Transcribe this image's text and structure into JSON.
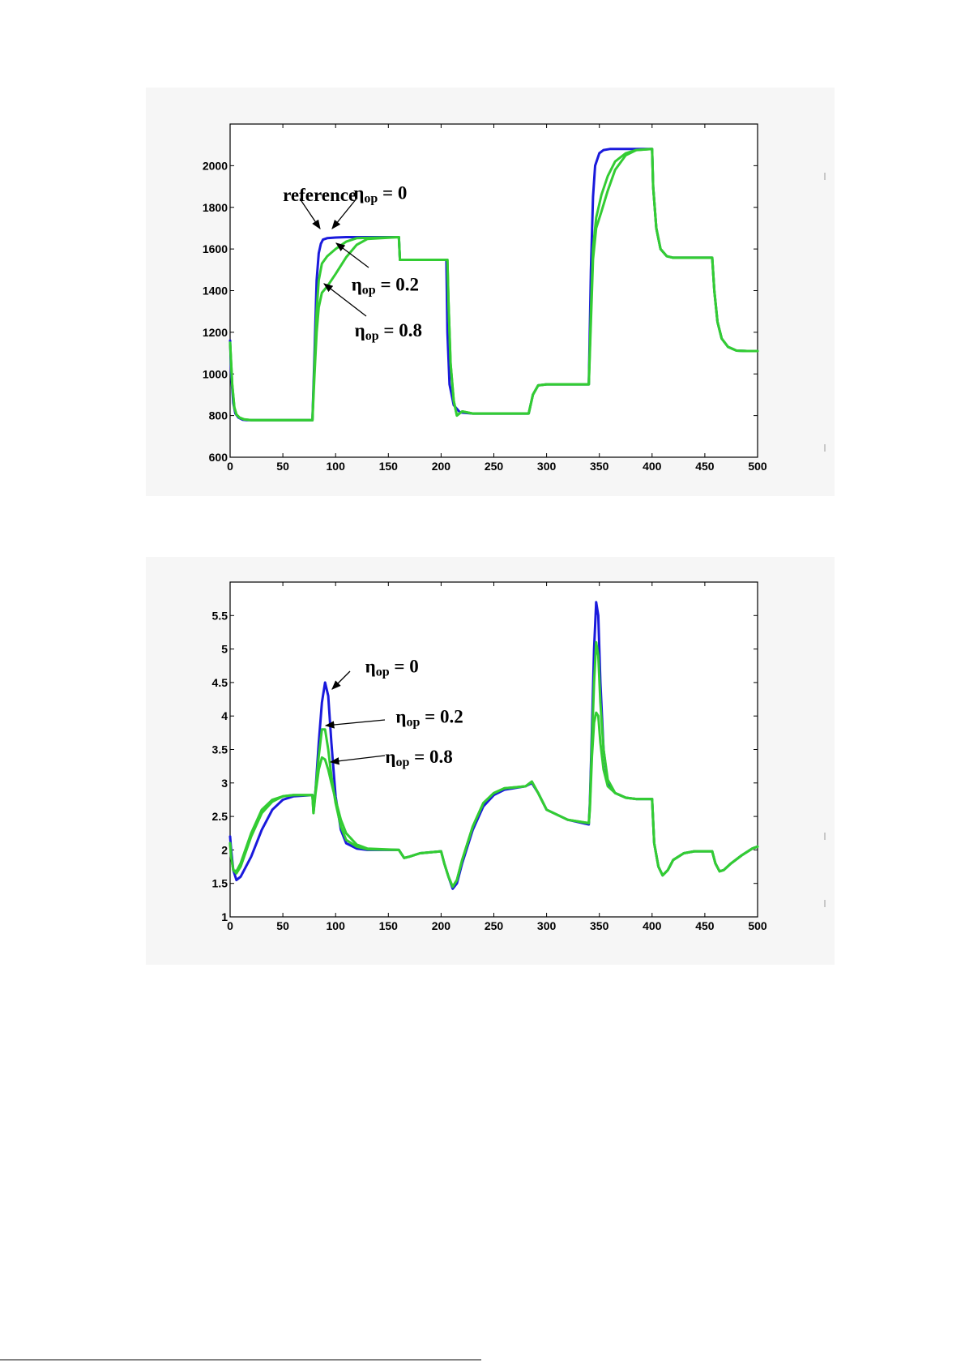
{
  "chart_data": [
    {
      "type": "line",
      "title": "",
      "xlabel": "",
      "ylabel": "",
      "xlim": [
        0,
        500
      ],
      "ylim": [
        600,
        2200
      ],
      "xticks": [
        0,
        50,
        100,
        150,
        200,
        250,
        300,
        350,
        400,
        450,
        500
      ],
      "yticks": [
        600,
        800,
        1000,
        1200,
        1400,
        1600,
        1800,
        2000
      ],
      "grid": false,
      "series": [
        {
          "color": "#1a1adc",
          "x": [
            0,
            1,
            3,
            5,
            8,
            12,
            16,
            20,
            78,
            80,
            82,
            84,
            86,
            88,
            92,
            100,
            110,
            160,
            161,
            200,
            205,
            206,
            208,
            212,
            218,
            230,
            283,
            287,
            292,
            300,
            340,
            342,
            344,
            346,
            350,
            354,
            360,
            400,
            401,
            404,
            408,
            414,
            420,
            457,
            459,
            462,
            466,
            472,
            480,
            490,
            500
          ],
          "y": [
            1160,
            1000,
            860,
            810,
            790,
            780,
            778,
            778,
            778,
            1100,
            1450,
            1580,
            1625,
            1645,
            1652,
            1655,
            1657,
            1657,
            1548,
            1548,
            1548,
            1200,
            950,
            850,
            815,
            810,
            810,
            900,
            945,
            950,
            950,
            1500,
            1850,
            2000,
            2060,
            2075,
            2080,
            2080,
            1900,
            1700,
            1600,
            1565,
            1558,
            1558,
            1400,
            1250,
            1170,
            1130,
            1112,
            1110,
            1110
          ]
        },
        {
          "color": "#33cc33",
          "x": [
            0,
            2,
            4,
            6,
            9,
            13,
            20,
            78,
            80,
            82,
            84,
            87,
            92,
            100,
            110,
            120,
            160,
            161,
            206,
            207,
            209,
            212,
            215,
            220,
            230,
            283,
            287,
            292,
            300,
            340,
            342,
            344,
            347,
            352,
            358,
            365,
            375,
            385,
            400,
            401,
            404,
            408,
            414,
            420,
            457,
            459,
            462,
            466,
            472,
            480,
            490,
            500
          ],
          "y": [
            1150,
            950,
            840,
            805,
            790,
            782,
            778,
            778,
            1050,
            1300,
            1450,
            1530,
            1565,
            1600,
            1635,
            1652,
            1657,
            1548,
            1548,
            1350,
            1050,
            870,
            800,
            820,
            810,
            810,
            900,
            945,
            950,
            950,
            1300,
            1600,
            1750,
            1860,
            1950,
            2020,
            2060,
            2075,
            2080,
            1900,
            1700,
            1600,
            1565,
            1558,
            1558,
            1400,
            1250,
            1170,
            1130,
            1112,
            1110,
            1110
          ]
        },
        {
          "color": "#33cc33",
          "x": [
            0,
            2,
            4,
            6,
            9,
            13,
            20,
            78,
            80,
            82,
            84,
            87,
            92,
            100,
            110,
            120,
            130,
            160,
            161,
            206,
            207,
            209,
            212,
            215,
            220,
            230,
            283,
            287,
            292,
            300,
            340,
            342,
            344,
            347,
            352,
            358,
            365,
            375,
            385,
            400,
            401,
            404,
            408,
            414,
            420,
            457,
            459,
            462,
            466,
            472,
            480,
            490,
            500
          ],
          "y": [
            1150,
            950,
            840,
            805,
            790,
            782,
            778,
            778,
            1000,
            1200,
            1320,
            1390,
            1420,
            1480,
            1560,
            1620,
            1648,
            1657,
            1548,
            1548,
            1350,
            1050,
            870,
            800,
            820,
            810,
            810,
            900,
            945,
            950,
            950,
            1250,
            1550,
            1700,
            1780,
            1880,
            1980,
            2050,
            2075,
            2080,
            1900,
            1700,
            1600,
            1565,
            1558,
            1558,
            1400,
            1250,
            1170,
            1130,
            1112,
            1110,
            1110
          ]
        }
      ],
      "annotations": [
        {
          "text": "reference",
          "x": 50,
          "y": 1830
        },
        {
          "symbol": "η",
          "sub": "op",
          "rest": " = 0",
          "x": 117,
          "y": 1840
        },
        {
          "symbol": "η",
          "sub": "op",
          "rest": " = 0.2",
          "x": 115,
          "y": 1400
        },
        {
          "symbol": "η",
          "sub": "op",
          "rest": " = 0.8",
          "x": 118,
          "y": 1180
        }
      ]
    },
    {
      "type": "line",
      "title": "",
      "xlabel": "",
      "ylabel": "",
      "xlim": [
        0,
        500
      ],
      "ylim": [
        1,
        6
      ],
      "xticks": [
        0,
        50,
        100,
        150,
        200,
        250,
        300,
        350,
        400,
        450,
        500
      ],
      "yticks": [
        1,
        1.5,
        2,
        2.5,
        3,
        3.5,
        4,
        4.5,
        5,
        5.5
      ],
      "grid": false,
      "series": [
        {
          "color": "#1a1adc",
          "x": [
            0,
            1,
            3,
            6,
            10,
            20,
            30,
            40,
            50,
            60,
            78,
            79,
            81,
            84,
            87,
            90,
            93,
            96,
            100,
            105,
            110,
            120,
            130,
            160,
            165,
            170,
            180,
            200,
            203,
            207,
            211,
            215,
            220,
            230,
            240,
            250,
            260,
            280,
            286,
            292,
            300,
            320,
            340,
            341,
            343,
            345,
            347,
            349,
            351,
            354,
            358,
            365,
            375,
            385,
            400,
            402,
            406,
            410,
            415,
            420,
            430,
            440,
            457,
            460,
            464,
            468,
            475,
            485,
            495,
            500
          ],
          "y": [
            2.2,
            2.0,
            1.7,
            1.55,
            1.6,
            1.9,
            2.3,
            2.6,
            2.75,
            2.8,
            2.82,
            2.6,
            2.9,
            3.6,
            4.2,
            4.5,
            4.3,
            3.6,
            2.8,
            2.3,
            2.1,
            2.02,
            2.0,
            2.0,
            1.88,
            1.9,
            1.95,
            1.98,
            1.8,
            1.6,
            1.42,
            1.5,
            1.8,
            2.3,
            2.65,
            2.82,
            2.9,
            2.95,
            3.0,
            2.85,
            2.6,
            2.45,
            2.38,
            2.7,
            3.8,
            5.0,
            5.7,
            5.5,
            4.5,
            3.5,
            3.0,
            2.85,
            2.78,
            2.76,
            2.76,
            2.1,
            1.75,
            1.62,
            1.7,
            1.85,
            1.95,
            1.98,
            1.98,
            1.8,
            1.68,
            1.7,
            1.8,
            1.92,
            2.02,
            2.05
          ]
        },
        {
          "color": "#33cc33",
          "x": [
            0,
            1,
            3,
            6,
            10,
            20,
            30,
            40,
            50,
            60,
            78,
            79,
            81,
            84,
            87,
            90,
            93,
            96,
            100,
            105,
            110,
            120,
            130,
            160,
            165,
            170,
            180,
            200,
            203,
            207,
            211,
            215,
            220,
            230,
            240,
            250,
            260,
            280,
            286,
            292,
            300,
            320,
            340,
            341,
            343,
            345,
            347,
            349,
            351,
            354,
            358,
            365,
            375,
            385,
            400,
            402,
            406,
            410,
            415,
            420,
            430,
            440,
            457,
            460,
            464,
            468,
            475,
            485,
            495,
            500
          ],
          "y": [
            2.1,
            1.9,
            1.7,
            1.65,
            1.75,
            2.2,
            2.55,
            2.72,
            2.8,
            2.82,
            2.82,
            2.55,
            2.9,
            3.4,
            3.8,
            3.8,
            3.5,
            3.1,
            2.7,
            2.35,
            2.15,
            2.05,
            2.01,
            2.0,
            1.88,
            1.9,
            1.95,
            1.98,
            1.8,
            1.6,
            1.45,
            1.55,
            1.85,
            2.35,
            2.7,
            2.85,
            2.92,
            2.95,
            3.02,
            2.85,
            2.6,
            2.45,
            2.4,
            2.65,
            3.6,
            4.5,
            5.1,
            4.9,
            4.2,
            3.5,
            3.05,
            2.85,
            2.78,
            2.76,
            2.76,
            2.1,
            1.75,
            1.62,
            1.7,
            1.85,
            1.95,
            1.98,
            1.98,
            1.8,
            1.68,
            1.7,
            1.8,
            1.92,
            2.02,
            2.05
          ]
        },
        {
          "color": "#33cc33",
          "x": [
            0,
            1,
            3,
            6,
            10,
            20,
            30,
            40,
            50,
            60,
            78,
            79,
            81,
            84,
            87,
            90,
            93,
            96,
            100,
            105,
            110,
            120,
            130,
            160,
            165,
            170,
            180,
            200,
            203,
            207,
            211,
            215,
            220,
            230,
            240,
            250,
            260,
            280,
            286,
            292,
            300,
            320,
            340,
            341,
            343,
            345,
            347,
            349,
            351,
            354,
            358,
            365,
            375,
            385,
            400,
            402,
            406,
            410,
            415,
            420,
            430,
            440,
            457,
            460,
            464,
            468,
            475,
            485,
            495,
            500
          ],
          "y": [
            2.1,
            1.9,
            1.7,
            1.68,
            1.8,
            2.25,
            2.6,
            2.75,
            2.8,
            2.82,
            2.82,
            2.55,
            2.85,
            3.2,
            3.38,
            3.35,
            3.2,
            3.0,
            2.75,
            2.45,
            2.25,
            2.08,
            2.02,
            2.0,
            1.88,
            1.9,
            1.95,
            1.98,
            1.8,
            1.6,
            1.45,
            1.55,
            1.85,
            2.35,
            2.7,
            2.85,
            2.92,
            2.95,
            3.02,
            2.85,
            2.6,
            2.45,
            2.4,
            2.6,
            3.4,
            3.9,
            4.05,
            4.0,
            3.6,
            3.2,
            2.95,
            2.85,
            2.78,
            2.76,
            2.76,
            2.1,
            1.75,
            1.62,
            1.7,
            1.85,
            1.95,
            1.98,
            1.98,
            1.8,
            1.68,
            1.7,
            1.8,
            1.92,
            2.02,
            2.05
          ]
        }
      ],
      "annotations": [
        {
          "symbol": "η",
          "sub": "op",
          "rest": " = 0",
          "x": 128,
          "y": 4.65
        },
        {
          "symbol": "η",
          "sub": "op",
          "rest": " = 0.2",
          "x": 157,
          "y": 3.9
        },
        {
          "symbol": "η",
          "sub": "op",
          "rest": " = 0.8",
          "x": 147,
          "y": 3.3
        }
      ]
    }
  ]
}
